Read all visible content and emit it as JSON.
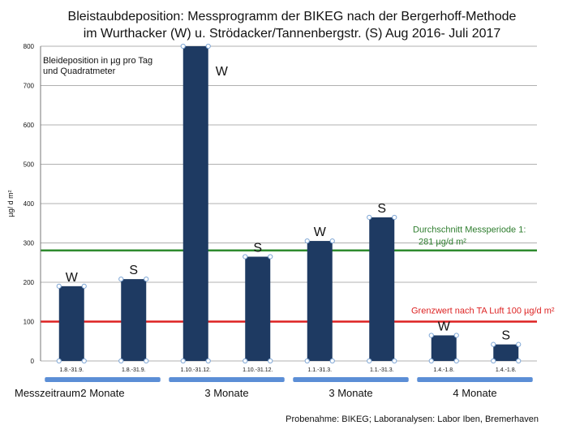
{
  "chart_data": {
    "type": "bar",
    "title_line1": "Bleistaubdeposition: Messprogramm der BIKEG nach der Bergerhoff-Methode",
    "title_line2": "im Wurthacker (W) u. Strödacker/Tannenbergstr. (S) Aug 2016- Juli 2017",
    "ylabel": "µg/ d m²",
    "inner_label_line1": "Bleideposition in µg pro Tag",
    "inner_label_line2": "und Quadratmeter",
    "ylim": [
      0,
      800
    ],
    "yticks": [
      0,
      100,
      200,
      300,
      400,
      500,
      600,
      700,
      800
    ],
    "categories": [
      "1.8.-31.9.",
      "1.8.-31.9.",
      "1.10.-31.12.",
      "1.10.-31.12.",
      "1.1.-31.3.",
      "1.1.-31.3.",
      "1.4.-1.8.",
      "1.4.-1.8."
    ],
    "values": [
      190,
      208,
      800,
      265,
      305,
      365,
      65,
      42
    ],
    "bar_labels": [
      "W",
      "S",
      "W",
      "S",
      "W",
      "S",
      "W",
      "S"
    ],
    "reference_lines": [
      {
        "value": 281,
        "color": "#2e8b2e",
        "label_line1": "Durchschnitt Messperiode 1:",
        "label_line2": "281 µg/d m²"
      },
      {
        "value": 100,
        "color": "#dd2222",
        "label_line1": "Grenzwert nach TA Luft 100 µg/d m²",
        "label_line2": ""
      }
    ],
    "period_axis_label": "Messzeitraum:",
    "periods": [
      {
        "label": "2 Monate",
        "bars": [
          0,
          1
        ]
      },
      {
        "label": "3 Monate",
        "bars": [
          2,
          3
        ]
      },
      {
        "label": "3 Monate",
        "bars": [
          4,
          5
        ]
      },
      {
        "label": "4 Monate",
        "bars": [
          6,
          7
        ]
      }
    ],
    "colors": {
      "bar": "#1e3a62",
      "grid": "#b0b0b0",
      "period_bar": "#5b8ed6"
    },
    "grid": true
  },
  "source_note": "Probenahme: BIKEG; Laboranalysen: Labor Iben, Bremerhaven"
}
